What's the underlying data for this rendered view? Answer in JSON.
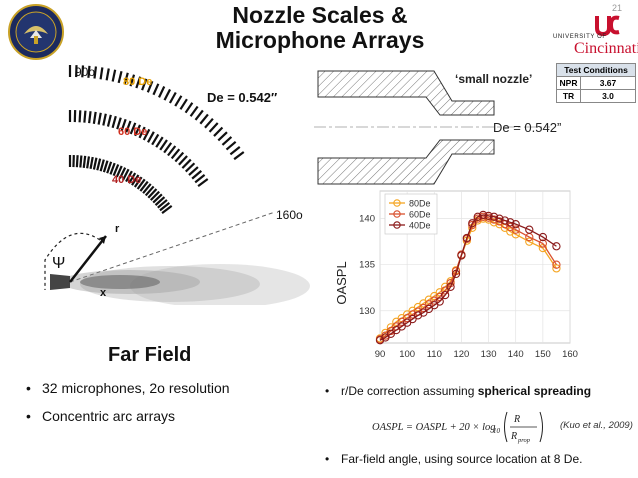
{
  "title_line1": "Nozzle Scales &",
  "title_line2": "Microphone Arrays",
  "page_number": "21",
  "university": {
    "small": "UNIVERSITY OF",
    "name": "Cincinnati"
  },
  "test_conditions": {
    "header": "Test Conditions",
    "rows": [
      {
        "label": "NPR",
        "value": "3.67"
      },
      {
        "label": "TR",
        "value": "3.0"
      }
    ]
  },
  "diagram": {
    "angle_top": "90o",
    "angle_right": "160o",
    "arc_labels": [
      {
        "text": "80 De",
        "color": "#e8a000"
      },
      {
        "text": "60 De",
        "color": "#d03020"
      },
      {
        "text": "40 De",
        "color": "#b02020"
      }
    ],
    "de_label": "De = 0.542″",
    "r": "r",
    "psi": "Ψ",
    "x": "x"
  },
  "far_field": "Far Field",
  "nozzle_label": "‘small nozzle’",
  "nozzle_de": "De = 0.542”",
  "bullets_left": [
    "32 microphones, 2o resolution",
    "Concentric arc arrays"
  ],
  "bullets_right": {
    "b1_prefix": "r/De correction assuming ",
    "b1_bold": "spherical spreading",
    "equation": "OASPL = OASPL + 20 × log10 (R / Rprop)",
    "citation": "(Kuo et al., 2009)",
    "b2": "Far-field angle, using source location at 8 De."
  },
  "chart_data": {
    "type": "line",
    "ylabel": "OASPL",
    "xlabel": "",
    "xlim": [
      90,
      160
    ],
    "ylim": [
      126.5,
      143
    ],
    "xticks": [
      90,
      100,
      110,
      120,
      130,
      140,
      150,
      160
    ],
    "yticks": [
      130,
      135,
      140
    ],
    "grid": true,
    "legend": "top-left",
    "series": [
      {
        "name": "80De",
        "color": "#f5a623",
        "x": [
          90,
          92,
          94,
          96,
          98,
          100,
          102,
          104,
          106,
          108,
          110,
          112,
          114,
          116,
          118,
          120,
          122,
          124,
          126,
          128,
          130,
          132,
          134,
          136,
          138,
          140,
          145,
          150,
          155
        ],
        "y": [
          127.0,
          127.6,
          128.2,
          128.8,
          129.2,
          129.6,
          130.0,
          130.4,
          130.8,
          131.2,
          131.6,
          132.0,
          132.6,
          133.2,
          134.4,
          136.0,
          137.6,
          139.0,
          139.8,
          140.0,
          139.9,
          139.6,
          139.4,
          139.0,
          138.6,
          138.3,
          137.5,
          136.8,
          134.6
        ]
      },
      {
        "name": "60De",
        "color": "#d9502e",
        "x": [
          90,
          92,
          94,
          96,
          98,
          100,
          102,
          104,
          106,
          108,
          110,
          112,
          114,
          116,
          118,
          120,
          122,
          124,
          126,
          128,
          130,
          132,
          134,
          136,
          138,
          140,
          145,
          150,
          155
        ],
        "y": [
          126.9,
          127.3,
          127.8,
          128.3,
          128.8,
          129.2,
          129.6,
          129.9,
          130.3,
          130.7,
          131.1,
          131.5,
          132.2,
          133.0,
          134.3,
          136.1,
          137.8,
          139.3,
          140.0,
          140.2,
          140.1,
          139.9,
          139.7,
          139.4,
          139.1,
          138.8,
          138.0,
          137.3,
          135.0
        ]
      },
      {
        "name": "40De",
        "color": "#8b1a1a",
        "x": [
          90,
          92,
          94,
          96,
          98,
          100,
          102,
          104,
          106,
          108,
          110,
          112,
          114,
          116,
          118,
          120,
          122,
          124,
          126,
          128,
          130,
          132,
          134,
          136,
          138,
          140,
          145,
          150,
          155
        ],
        "y": [
          126.8,
          127.1,
          127.5,
          127.9,
          128.3,
          128.7,
          129.1,
          129.5,
          129.8,
          130.2,
          130.6,
          131.0,
          131.7,
          132.6,
          134.0,
          136.0,
          137.9,
          139.5,
          140.2,
          140.4,
          140.3,
          140.2,
          140.0,
          139.8,
          139.6,
          139.4,
          138.8,
          138.0,
          137.0
        ]
      }
    ]
  }
}
